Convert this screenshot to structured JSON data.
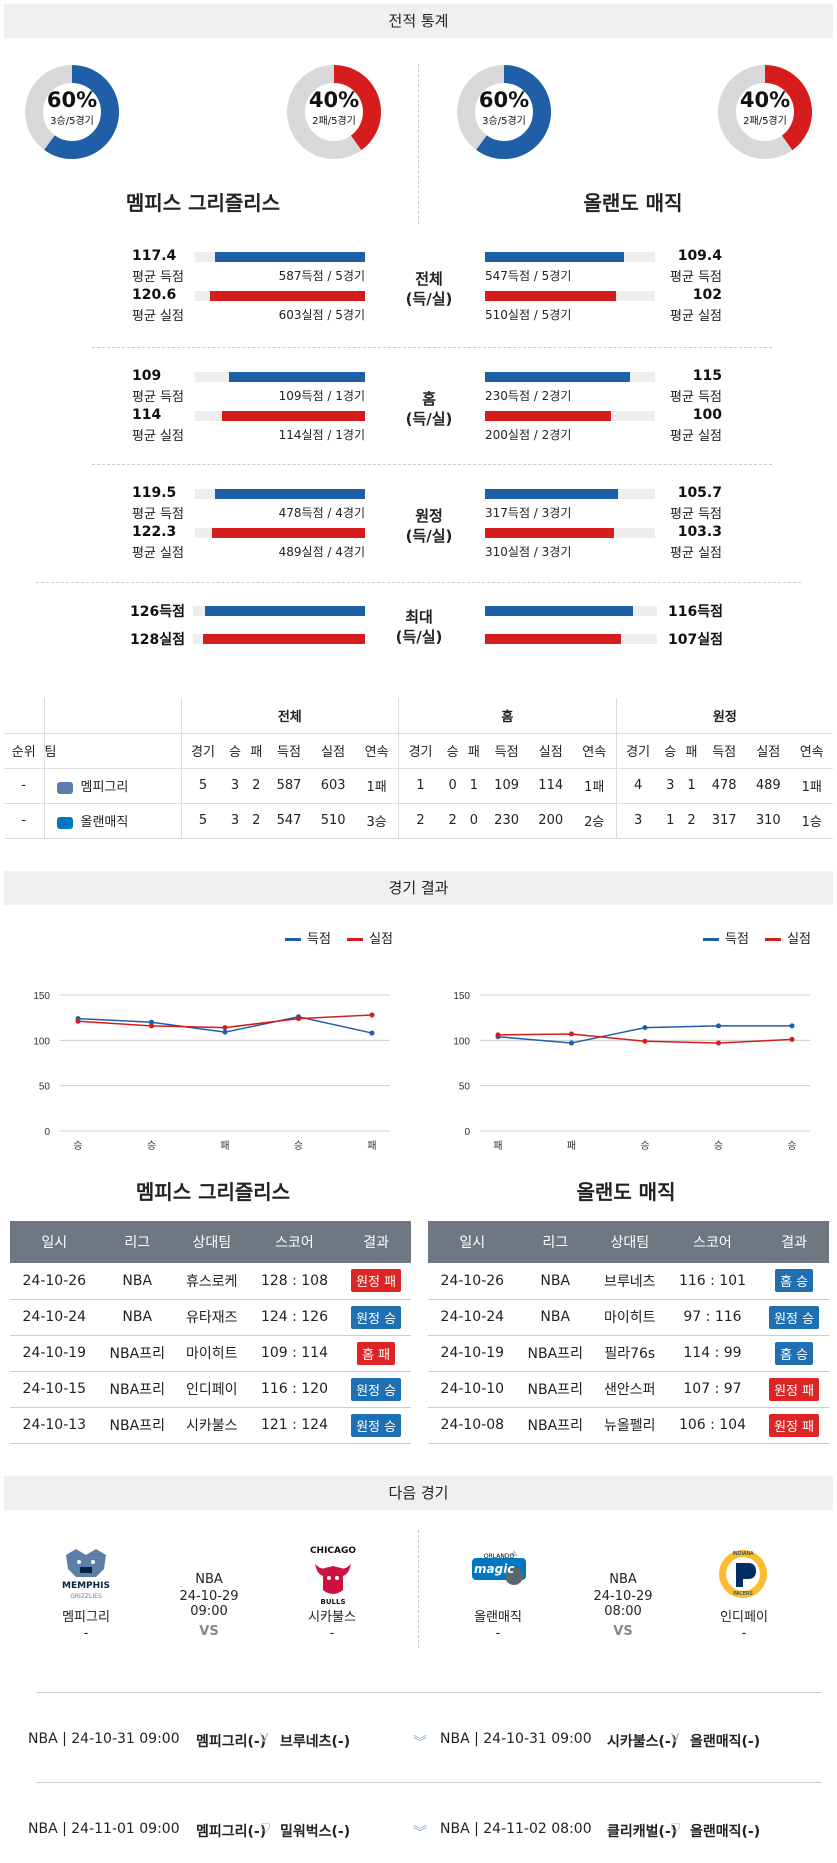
{
  "sections": {
    "stats": "전적 통계",
    "results": "경기 결과",
    "next": "다음 경기"
  },
  "teams": {
    "left": {
      "name": "멤피스 그리즐리스",
      "short": "멤피그리"
    },
    "right": {
      "name": "올랜도 매직",
      "short": "올랜매직"
    }
  },
  "colors": {
    "home_blue": "#1f5fa8",
    "away_red": "#d61c1c",
    "win_badge": "#1f6fb3",
    "loss_badge": "#de2424",
    "header": "#6f7782"
  },
  "donuts": [
    {
      "pct": "60%",
      "sub": "3승/5경기",
      "fraction": 0.6,
      "color": "#1f5fa8"
    },
    {
      "pct": "40%",
      "sub": "2패/5경기",
      "fraction": 0.4,
      "color": "#d61c1c"
    },
    {
      "pct": "60%",
      "sub": "3승/5경기",
      "fraction": 0.6,
      "color": "#1f5fa8"
    },
    {
      "pct": "40%",
      "sub": "2패/5경기",
      "fraction": 0.4,
      "color": "#d61c1c"
    }
  ],
  "compare": [
    {
      "label1": "전체",
      "label2": "(득/실)",
      "left": {
        "score_val": "117.4",
        "score_cap": "평균 득점",
        "score_bar": "587득점 / 5경기",
        "score_frac": 0.88,
        "loss_val": "120.6",
        "loss_cap": "평균 실점",
        "loss_bar": "603실점 / 5경기",
        "loss_frac": 0.91
      },
      "right": {
        "score_val": "109.4",
        "score_cap": "평균 득점",
        "score_bar": "547득점 / 5경기",
        "score_frac": 0.82,
        "loss_val": "102",
        "loss_cap": "평균 실점",
        "loss_bar": "510실점 / 5경기",
        "loss_frac": 0.77
      }
    },
    {
      "label1": "홈",
      "label2": "(득/실)",
      "left": {
        "score_val": "109",
        "score_cap": "평균 득점",
        "score_bar": "109득점 / 1경기",
        "score_frac": 0.8,
        "loss_val": "114",
        "loss_cap": "평균 실점",
        "loss_bar": "114실점 / 1경기",
        "loss_frac": 0.84
      },
      "right": {
        "score_val": "115",
        "score_cap": "평균 득점",
        "score_bar": "230득점 / 2경기",
        "score_frac": 0.85,
        "loss_val": "100",
        "loss_cap": "평균 실점",
        "loss_bar": "200실점 / 2경기",
        "loss_frac": 0.74
      }
    },
    {
      "label1": "원정",
      "label2": "(득/실)",
      "left": {
        "score_val": "119.5",
        "score_cap": "평균 득점",
        "score_bar": "478득점 / 4경기",
        "score_frac": 0.88,
        "loss_val": "122.3",
        "loss_cap": "평균 실점",
        "loss_bar": "489실점 / 4경기",
        "loss_frac": 0.9
      },
      "right": {
        "score_val": "105.7",
        "score_cap": "평균 득점",
        "score_bar": "317득점 / 3경기",
        "score_frac": 0.78,
        "loss_val": "103.3",
        "loss_cap": "평균 실점",
        "loss_bar": "310실점 / 3경기",
        "loss_frac": 0.76
      }
    }
  ],
  "max": {
    "label1": "최대",
    "label2": "(득/실)",
    "left": {
      "score": "126득점",
      "loss": "128실점",
      "score_frac": 0.93,
      "loss_frac": 0.94
    },
    "right": {
      "score": "116득점",
      "loss": "107실점",
      "score_frac": 0.86,
      "loss_frac": 0.79
    }
  },
  "standings": {
    "groups": [
      "전체",
      "홈",
      "원정"
    ],
    "cols": [
      "순위",
      "팀",
      "경기",
      "승",
      "패",
      "득점",
      "실점",
      "연속",
      "경기",
      "승",
      "패",
      "득점",
      "실점",
      "연속",
      "경기",
      "승",
      "패",
      "득점",
      "실점",
      "연속"
    ],
    "rows": [
      [
        "-",
        "멤피그리",
        "5",
        "3",
        "2",
        "587",
        "603",
        "1패",
        "1",
        "0",
        "1",
        "109",
        "114",
        "1패",
        "4",
        "3",
        "1",
        "478",
        "489",
        "1패"
      ],
      [
        "-",
        "올랜매직",
        "5",
        "3",
        "2",
        "547",
        "510",
        "3승",
        "2",
        "2",
        "0",
        "230",
        "200",
        "2승",
        "3",
        "1",
        "2",
        "317",
        "310",
        "1승"
      ]
    ]
  },
  "chart_data": [
    {
      "type": "line",
      "categories": [
        "승",
        "승",
        "패",
        "승",
        "패"
      ],
      "series": [
        {
          "name": "득점",
          "values": [
            124,
            120,
            109,
            126,
            108
          ],
          "color": "#1f5fa8"
        },
        {
          "name": "실점",
          "values": [
            121,
            116,
            114,
            124,
            128
          ],
          "color": "#d61c1c"
        }
      ],
      "yticks": [
        "150",
        "100",
        "50",
        "0"
      ],
      "ylim": [
        0,
        150
      ]
    },
    {
      "type": "line",
      "categories": [
        "패",
        "패",
        "승",
        "승",
        "승"
      ],
      "series": [
        {
          "name": "득점",
          "values": [
            104,
            97,
            114,
            116,
            116
          ],
          "color": "#1f5fa8"
        },
        {
          "name": "실점",
          "values": [
            106,
            107,
            99,
            97,
            101
          ],
          "color": "#d61c1c"
        }
      ],
      "yticks": [
        "150",
        "100",
        "50",
        "0"
      ],
      "ylim": [
        0,
        150
      ]
    }
  ],
  "results_headers": [
    "일시",
    "리그",
    "상대팀",
    "스코어",
    "결과"
  ],
  "results_left": [
    [
      "24-10-26",
      "NBA",
      "휴스로케",
      "128 : 108",
      "원정 패",
      "red"
    ],
    [
      "24-10-24",
      "NBA",
      "유타재즈",
      "124 : 126",
      "원정 승",
      "blue"
    ],
    [
      "24-10-19",
      "NBA프리",
      "마이히트",
      "109 : 114",
      "홈 패",
      "red"
    ],
    [
      "24-10-15",
      "NBA프리",
      "인디페이",
      "116 : 120",
      "원정 승",
      "blue"
    ],
    [
      "24-10-13",
      "NBA프리",
      "시카불스",
      "121 : 124",
      "원정 승",
      "blue"
    ]
  ],
  "results_right": [
    [
      "24-10-26",
      "NBA",
      "브루네츠",
      "116 : 101",
      "홈 승",
      "blue"
    ],
    [
      "24-10-24",
      "NBA",
      "마이히트",
      "97 : 116",
      "원정 승",
      "blue"
    ],
    [
      "24-10-19",
      "NBA프리",
      "필라76s",
      "114 : 99",
      "홈 승",
      "blue"
    ],
    [
      "24-10-10",
      "NBA프리",
      "샌안스퍼",
      "107 : 97",
      "원정 패",
      "red"
    ],
    [
      "24-10-08",
      "NBA프리",
      "뉴올펠리",
      "106 : 104",
      "원정 패",
      "red"
    ]
  ],
  "next": {
    "left": {
      "home": "멤피그리",
      "away": "시카불스",
      "league": "NBA",
      "date": "24-10-29 09:00",
      "vs": "VS",
      "home_score": "-",
      "away_score": "-",
      "logo_home": "MEMPHIS",
      "logo_home_sub": "GRIZZLIES",
      "logo_away": "CHICAGO",
      "logo_away_sub": "BULLS"
    },
    "right": {
      "home": "올랜매직",
      "away": "인디페이",
      "league": "NBA",
      "date": "24-10-29 08:00",
      "vs": "VS",
      "home_score": "-",
      "away_score": "-",
      "logo_home": "ORLANDO",
      "logo_home_sub": "magic",
      "logo_away": "INDIANA",
      "logo_away_sub": "PACERS"
    }
  },
  "upcoming": [
    {
      "left_info": "NBA | 24-10-31 09:00",
      "left_home": "멤피그리(-)",
      "left_away": "브루네츠(-)",
      "right_info": "NBA | 24-10-31 09:00",
      "right_home": "시카불스(-)",
      "right_away": "올랜매직(-)"
    },
    {
      "left_info": "NBA | 24-11-01 09:00",
      "left_home": "멤피그리(-)",
      "left_away": "밀워벅스(-)",
      "right_info": "NBA | 24-11-02 08:00",
      "right_home": "클리캐벌(-)",
      "right_away": "올랜매직(-)"
    }
  ]
}
